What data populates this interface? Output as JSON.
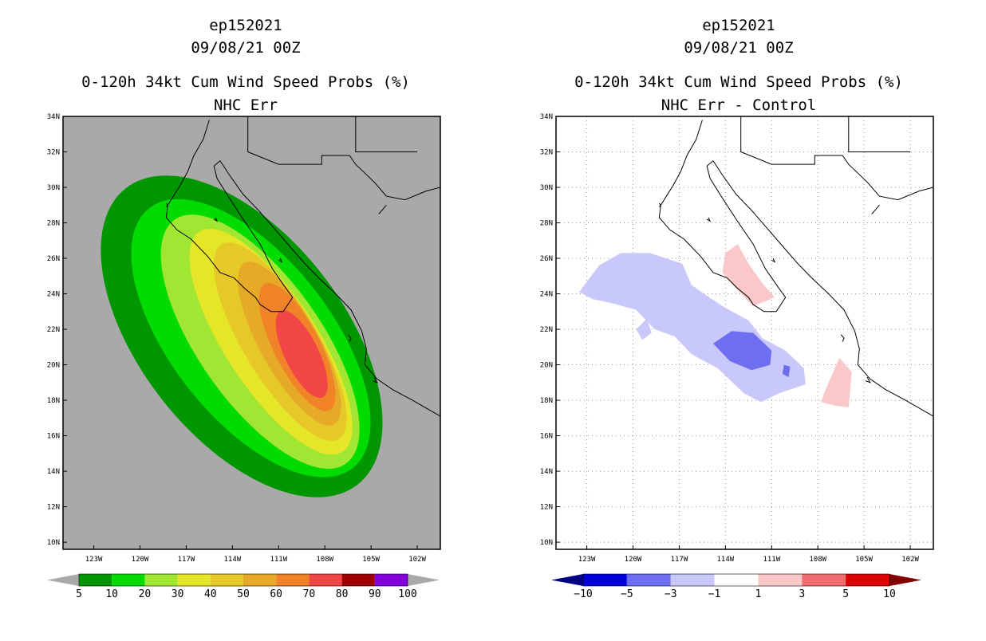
{
  "chart_data": [
    {
      "type": "heatmap",
      "storm_id": "ep152021",
      "date": "09/08/21 00Z",
      "title": "0-120h 34kt Cum Wind Speed Probs (%)",
      "subtitle": "NHC Err",
      "xlabel": "",
      "ylabel": "",
      "x_range": [
        -125,
        -100.5
      ],
      "y_range": [
        9.6,
        34
      ],
      "x_ticks": [
        "123W",
        "120W",
        "117W",
        "114W",
        "111W",
        "108W",
        "105W",
        "102W"
      ],
      "x_tick_values": [
        -123,
        -120,
        -117,
        -114,
        -111,
        -108,
        -105,
        -102
      ],
      "y_ticks": [
        "10N",
        "12N",
        "14N",
        "16N",
        "18N",
        "20N",
        "22N",
        "24N",
        "26N",
        "28N",
        "30N",
        "32N",
        "34N"
      ],
      "y_tick_values": [
        10,
        12,
        14,
        16,
        18,
        20,
        22,
        24,
        26,
        28,
        30,
        32,
        34
      ],
      "grid": false,
      "background": "#a9a9a9",
      "colorbar": {
        "labels": [
          "5",
          "10",
          "20",
          "30",
          "40",
          "50",
          "60",
          "70",
          "80",
          "90",
          "100"
        ],
        "values": [
          5,
          10,
          20,
          30,
          40,
          50,
          60,
          70,
          80,
          90,
          100
        ],
        "colors": [
          "#009600",
          "#00dc00",
          "#a0e632",
          "#e6e628",
          "#e6c828",
          "#e6aa28",
          "#f08228",
          "#f04646",
          "#a00000",
          "#8200dc"
        ],
        "end_color": "#a9a9a9"
      },
      "contours": [
        {
          "level": 5,
          "color": "#009600",
          "cx": -113.4,
          "cy": 21.6,
          "rx": 6.6,
          "ry": 10.6,
          "rot": -38
        },
        {
          "level": 10,
          "color": "#00dc00",
          "cx": -112.8,
          "cy": 21.5,
          "rx": 5.2,
          "ry": 9.3,
          "rot": -38
        },
        {
          "level": 20,
          "color": "#a0e632",
          "cx": -112.2,
          "cy": 21.3,
          "rx": 4.0,
          "ry": 8.4,
          "rot": -35
        },
        {
          "level": 30,
          "color": "#e6e628",
          "cx": -111.5,
          "cy": 21.3,
          "rx": 3.0,
          "ry": 7.4,
          "rot": -33
        },
        {
          "level": 40,
          "color": "#e6c828",
          "cx": -110.9,
          "cy": 21.3,
          "rx": 2.4,
          "ry": 6.4,
          "rot": -31
        },
        {
          "level": 50,
          "color": "#e6aa28",
          "cx": -110.3,
          "cy": 21.2,
          "rx": 1.9,
          "ry": 5.2,
          "rot": -29
        },
        {
          "level": 60,
          "color": "#f08228",
          "cx": -109.8,
          "cy": 21.0,
          "rx": 1.5,
          "ry": 4.0,
          "rot": -27
        },
        {
          "level": 70,
          "color": "#f04646",
          "cx": -109.5,
          "cy": 20.6,
          "rx": 1.1,
          "ry": 2.7,
          "rot": -26
        }
      ]
    },
    {
      "type": "heatmap",
      "storm_id": "ep152021",
      "date": "09/08/21 00Z",
      "title": "0-120h 34kt Cum Wind Speed Probs (%)",
      "subtitle": "NHC Err - Control",
      "xlabel": "",
      "ylabel": "",
      "x_range": [
        -125,
        -100.5
      ],
      "y_range": [
        9.6,
        34
      ],
      "x_ticks": [
        "123W",
        "120W",
        "117W",
        "114W",
        "111W",
        "108W",
        "105W",
        "102W"
      ],
      "x_tick_values": [
        -123,
        -120,
        -117,
        -114,
        -111,
        -108,
        -105,
        -102
      ],
      "y_ticks": [
        "10N",
        "12N",
        "14N",
        "16N",
        "18N",
        "20N",
        "22N",
        "24N",
        "26N",
        "28N",
        "30N",
        "32N",
        "34N"
      ],
      "y_tick_values": [
        10,
        12,
        14,
        16,
        18,
        20,
        22,
        24,
        26,
        28,
        30,
        32,
        34
      ],
      "grid": true,
      "background": "#ffffff",
      "colorbar": {
        "labels": [
          "-10",
          "-5",
          "-3",
          "-1",
          "1",
          "3",
          "5",
          "10"
        ],
        "values": [
          -10,
          -5,
          -3,
          -1,
          1,
          3,
          5,
          10
        ],
        "colors": [
          "#0000dc",
          "#6e6ef0",
          "#c8c8fa",
          "#ffffff",
          "#fac8c8",
          "#f06e6e",
          "#dc0000"
        ],
        "end_left": "#000082",
        "end_right": "#820000"
      },
      "regions": [
        {
          "level": "-3 to -1",
          "color": "#c8c8fa",
          "points": [
            [
              -123.5,
              24.1
            ],
            [
              -122.2,
              25.6
            ],
            [
              -120.8,
              26.3
            ],
            [
              -118.9,
              26.3
            ],
            [
              -116.8,
              25.7
            ],
            [
              -116.2,
              24.5
            ],
            [
              -115.4,
              24.0
            ],
            [
              -114.0,
              23.2
            ],
            [
              -112.5,
              22.5
            ],
            [
              -111.6,
              21.5
            ],
            [
              -110.1,
              20.8
            ],
            [
              -108.9,
              19.8
            ],
            [
              -108.8,
              18.9
            ],
            [
              -110.5,
              18.4
            ],
            [
              -111.7,
              17.9
            ],
            [
              -112.8,
              18.4
            ],
            [
              -114.5,
              19.8
            ],
            [
              -116.2,
              20.6
            ],
            [
              -117.3,
              21.6
            ],
            [
              -118.6,
              22.0
            ],
            [
              -119.8,
              23.1
            ],
            [
              -121.5,
              23.5
            ],
            [
              -122.6,
              23.7
            ]
          ]
        },
        {
          "level": "-3 to -1",
          "color": "#c8c8fa",
          "points": [
            [
              -119.8,
              22.0
            ],
            [
              -119.1,
              22.6
            ],
            [
              -118.8,
              21.8
            ],
            [
              -119.4,
              21.4
            ]
          ]
        },
        {
          "level": "-5 to -3",
          "color": "#6e6ef0",
          "points": [
            [
              -114.8,
              21.2
            ],
            [
              -113.6,
              21.9
            ],
            [
              -112.2,
              21.8
            ],
            [
              -111.0,
              20.8
            ],
            [
              -111.1,
              20.0
            ],
            [
              -112.3,
              19.7
            ],
            [
              -113.7,
              20.2
            ]
          ]
        },
        {
          "level": "-5 to -3",
          "color": "#6e6ef0",
          "points": [
            [
              -110.2,
              20.0
            ],
            [
              -109.8,
              19.9
            ],
            [
              -109.9,
              19.3
            ],
            [
              -110.3,
              19.5
            ]
          ]
        },
        {
          "level": "1 to 3",
          "color": "#fac8c8",
          "points": [
            [
              -114.0,
              26.3
            ],
            [
              -113.2,
              26.8
            ],
            [
              -112.5,
              25.7
            ],
            [
              -111.6,
              24.6
            ],
            [
              -110.8,
              23.8
            ],
            [
              -112.2,
              23.3
            ],
            [
              -113.3,
              24.3
            ],
            [
              -114.2,
              25.2
            ]
          ]
        },
        {
          "level": "1 to 3",
          "color": "#fac8c8",
          "points": [
            [
              -107.5,
              18.6
            ],
            [
              -106.6,
              20.4
            ],
            [
              -105.8,
              19.6
            ],
            [
              -106.0,
              17.6
            ],
            [
              -106.9,
              17.7
            ],
            [
              -107.8,
              17.9
            ]
          ]
        }
      ]
    }
  ]
}
